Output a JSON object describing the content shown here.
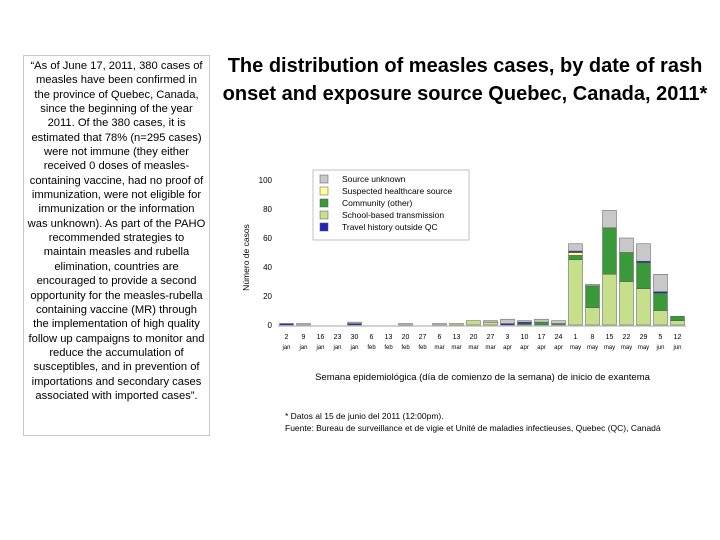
{
  "quote": "“As of June 17, 2011, 380 cases of measles have been confirmed in the province of Quebec, Canada, since the beginning of the year 2011. Of the 380 cases, it is estimated that 78% (n=295 cases) were not immune (they either received 0 doses of measles-containing vaccine, had no proof of immunization, were not eligible for immunization or the information was unknown). As part of the PAHO recommended strategies to maintain measles and rubella elimination, countries are encouraged to provide a second opportunity for the measles-rubella containing vaccine (MR) through the implementation of high quality follow up campaigns to monitor and reduce the accumulation of susceptibles, and in prevention of importations and secondary cases associated with imported cases”.",
  "footnote": {
    "line1": "* Datos al 15 de junio del 2011 (12:00pm).",
    "line2": "Fuente: Bureau de surveillance et de vigie et Unité de maladies infectieuses, Quebec (QC), Canadá"
  },
  "chart_data": {
    "type": "bar",
    "stacked": true,
    "title": "The distribution of measles cases, by date of rash onset and exposure source Quebec, Canada, 2011*",
    "xlabel": "Semana epidemiológica (día de comienzo de la semana) de inicio de exantema",
    "ylabel": "Número de casos",
    "ylim": [
      0,
      100
    ],
    "yticks": [
      0,
      20,
      40,
      60,
      80,
      100
    ],
    "grid": false,
    "legend_position": "top-center",
    "categories": [
      {
        "day": "2",
        "month": "jan"
      },
      {
        "day": "9",
        "month": "jan"
      },
      {
        "day": "16",
        "month": "jan"
      },
      {
        "day": "23",
        "month": "jan"
      },
      {
        "day": "30",
        "month": "jan"
      },
      {
        "day": "6",
        "month": "feb"
      },
      {
        "day": "13",
        "month": "feb"
      },
      {
        "day": "20",
        "month": "feb"
      },
      {
        "day": "27",
        "month": "feb"
      },
      {
        "day": "6",
        "month": "mar"
      },
      {
        "day": "13",
        "month": "mar"
      },
      {
        "day": "20",
        "month": "mar"
      },
      {
        "day": "27",
        "month": "mar"
      },
      {
        "day": "3",
        "month": "apr"
      },
      {
        "day": "10",
        "month": "apr"
      },
      {
        "day": "17",
        "month": "apr"
      },
      {
        "day": "24",
        "month": "apr"
      },
      {
        "day": "1",
        "month": "may"
      },
      {
        "day": "8",
        "month": "may"
      },
      {
        "day": "15",
        "month": "may"
      },
      {
        "day": "22",
        "month": "may"
      },
      {
        "day": "29",
        "month": "may"
      },
      {
        "day": "5",
        "month": "jun"
      },
      {
        "day": "12",
        "month": "jun"
      }
    ],
    "series": [
      {
        "name": "School-based transmission",
        "color": "#c6df8a",
        "values": [
          0,
          0,
          0,
          0,
          0,
          0,
          0,
          0,
          0,
          0,
          1,
          3,
          2,
          0,
          0,
          0,
          0,
          45,
          12,
          35,
          30,
          25,
          10,
          3
        ]
      },
      {
        "name": "Community (other)",
        "color": "#3a9a3a",
        "values": [
          0,
          0,
          0,
          0,
          0,
          0,
          0,
          0,
          0,
          0,
          0,
          0,
          0,
          0,
          1,
          2,
          1,
          3,
          15,
          32,
          20,
          18,
          12,
          3
        ]
      },
      {
        "name": "Suspected healthcare source",
        "color": "#ffff99",
        "values": [
          0,
          0,
          0,
          0,
          0,
          0,
          0,
          0,
          0,
          0,
          0,
          0,
          0,
          0,
          0,
          0,
          0,
          2,
          0,
          0,
          0,
          0,
          0,
          0
        ]
      },
      {
        "name": "Travel history outside QC",
        "color": "#2424b8",
        "values": [
          1,
          0,
          0,
          0,
          1,
          0,
          0,
          0,
          0,
          0,
          0,
          0,
          0,
          1,
          1,
          0,
          0,
          1,
          0,
          0,
          0,
          1,
          1,
          0
        ]
      },
      {
        "name": "Source unknown",
        "color": "#c8c8c8",
        "values": [
          0,
          1,
          0,
          0,
          1,
          0,
          0,
          1,
          0,
          1,
          0,
          0,
          1,
          3,
          1,
          2,
          2,
          5,
          1,
          12,
          10,
          12,
          12,
          0
        ]
      }
    ],
    "legend_order": [
      "Source unknown",
      "Suspected healthcare source",
      "Community (other)",
      "School-based transmission",
      "Travel history outside QC"
    ]
  }
}
